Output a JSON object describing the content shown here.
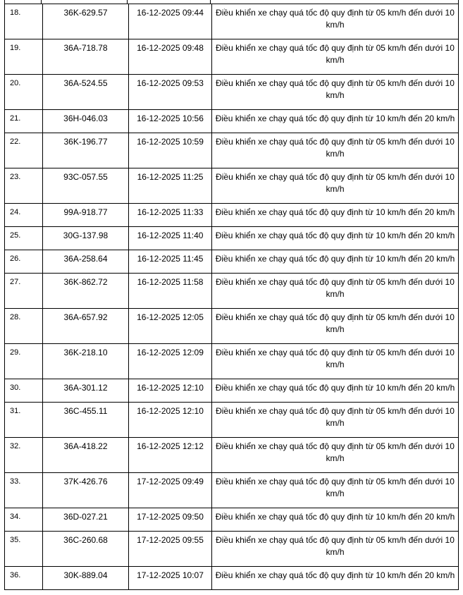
{
  "table": {
    "rows": [
      {
        "no": "18.",
        "plate": "36K-629.57",
        "time": "16-12-2025 09:44",
        "violation": "Điều khiển xe chạy quá tốc độ quy định từ 05 km/h đến dưới 10 km/h"
      },
      {
        "no": "19.",
        "plate": "36A-718.78",
        "time": "16-12-2025 09:48",
        "violation": "Điều khiển xe chạy quá tốc độ quy định từ 05 km/h đến dưới 10 km/h"
      },
      {
        "no": "20.",
        "plate": "36A-524.55",
        "time": "16-12-2025 09:53",
        "violation": "Điều khiển xe chạy quá tốc độ quy định từ 05 km/h đến dưới 10 km/h"
      },
      {
        "no": "21.",
        "plate": "36H-046.03",
        "time": "16-12-2025 10:56",
        "violation": "Điều khiển xe chạy quá tốc độ quy định từ 10 km/h đến 20 km/h"
      },
      {
        "no": "22.",
        "plate": "36K-196.77",
        "time": "16-12-2025 10:59",
        "violation": "Điều khiển xe chạy quá tốc độ quy định từ 05 km/h đến dưới 10 km/h"
      },
      {
        "no": "23.",
        "plate": "93C-057.55",
        "time": "16-12-2025 11:25",
        "violation": "Điều khiển xe chạy quá tốc độ quy định từ 05 km/h đến dưới 10 km/h"
      },
      {
        "no": "24.",
        "plate": "99A-918.77",
        "time": "16-12-2025 11:33",
        "violation": "Điều khiển xe chạy quá tốc độ quy định từ 10 km/h đến 20 km/h"
      },
      {
        "no": "25.",
        "plate": "30G-137.98",
        "time": "16-12-2025 11:40",
        "violation": "Điều khiển xe chạy quá tốc độ quy định từ 10 km/h đến 20 km/h"
      },
      {
        "no": "26.",
        "plate": "36A-258.64",
        "time": "16-12-2025 11:45",
        "violation": "Điều khiển xe chạy quá tốc độ quy định từ 10 km/h đến 20 km/h"
      },
      {
        "no": "27.",
        "plate": "36K-862.72",
        "time": "16-12-2025 11:58",
        "violation": "Điều khiển xe chạy quá tốc độ quy định từ 05 km/h đến dưới 10 km/h"
      },
      {
        "no": "28.",
        "plate": "36A-657.92",
        "time": "16-12-2025 12:05",
        "violation": "Điều khiển xe chạy quá tốc độ quy định từ 05 km/h đến dưới 10 km/h"
      },
      {
        "no": "29.",
        "plate": "36K-218.10",
        "time": "16-12-2025 12:09",
        "violation": "Điều khiển xe chạy quá tốc độ quy định từ 05 km/h đến dưới 10 km/h"
      },
      {
        "no": "30.",
        "plate": "36A-301.12",
        "time": "16-12-2025 12:10",
        "violation": "Điều khiển xe chạy quá tốc độ quy định từ 10 km/h đến 20 km/h"
      },
      {
        "no": "31.",
        "plate": "36C-455.11",
        "time": "16-12-2025 12:10",
        "violation": "Điều khiển xe chạy quá tốc độ quy định từ 05 km/h đến dưới 10 km/h"
      },
      {
        "no": "32.",
        "plate": "36A-418.22",
        "time": "16-12-2025 12:12",
        "violation": "Điều khiển xe chạy quá tốc độ quy định từ 05 km/h đến dưới 10 km/h"
      },
      {
        "no": "33.",
        "plate": "37K-426.76",
        "time": "17-12-2025 09:49",
        "violation": "Điều khiển xe chạy quá tốc độ quy định từ 05 km/h đến dưới 10 km/h"
      },
      {
        "no": "34.",
        "plate": "36D-027.21",
        "time": "17-12-2025 09:50",
        "violation": "Điều khiển xe chạy quá tốc độ quy định từ 10 km/h đến 20 km/h"
      },
      {
        "no": "35.",
        "plate": "36C-260.68",
        "time": "17-12-2025 09:55",
        "violation": "Điều khiển xe chạy quá tốc độ quy định từ 05 km/h đến dưới 10 km/h"
      },
      {
        "no": "36.",
        "plate": "30K-889.04",
        "time": "17-12-2025 10:07",
        "violation": "Điều khiển xe chạy quá tốc độ quy định từ 10 km/h đến 20 km/h"
      }
    ]
  }
}
